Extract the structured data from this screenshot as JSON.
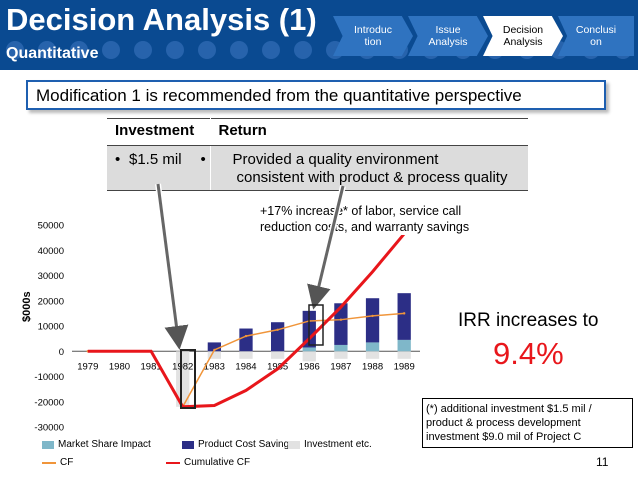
{
  "header": {
    "title": "Decision Analysis (1)",
    "subtitle": "Quantitative",
    "nav": [
      {
        "label_line1": "Introduc",
        "label_line2": "tion",
        "active": false
      },
      {
        "label_line1": "Issue",
        "label_line2": "Analysis",
        "active": false
      },
      {
        "label_line1": "Decision",
        "label_line2": "Analysis",
        "active": true
      },
      {
        "label_line1": "Conclusi",
        "label_line2": "on",
        "active": false
      }
    ]
  },
  "banner": {
    "text": "Modification 1 is recommended from the quantitative perspective"
  },
  "return_table": {
    "headers": [
      "Investment",
      "Return"
    ],
    "investment": "$1.5 mil",
    "return_line1": "Provided a quality environment",
    "return_line2": "consistent with product & process quality",
    "bullet": "•"
  },
  "annotation": {
    "line1": "+17% increase* of labor, service call",
    "line2": "reduction costs, and warranty savings"
  },
  "chart_data": {
    "type": "bar",
    "ylabel": "$000s",
    "ylim": [
      -30000,
      50000
    ],
    "y_ticks": [
      50000,
      40000,
      30000,
      20000,
      10000,
      0,
      -10000,
      -20000,
      -30000
    ],
    "categories": [
      "1979",
      "1980",
      "1981",
      "1982",
      "1983",
      "1984",
      "1985",
      "1986",
      "1987",
      "1988",
      "1989"
    ],
    "series": [
      {
        "name": "Market Share Impact",
        "kind": "bar",
        "color": "#7fb7c9",
        "values": [
          0,
          0,
          0,
          0,
          0,
          0,
          0,
          1500,
          2500,
          3500,
          4500
        ]
      },
      {
        "name": "Product Cost Savings",
        "kind": "bar",
        "color": "#2c2e86",
        "values": [
          0,
          0,
          0,
          0,
          3500,
          9000,
          11500,
          14500,
          16500,
          17500,
          18500
        ]
      },
      {
        "name": "Investment etc.",
        "kind": "bar",
        "color": "#e2e2e2",
        "values": [
          0,
          0,
          0,
          -22000,
          -3000,
          -3000,
          -3000,
          -4000,
          -3000,
          -3000,
          -3000
        ]
      },
      {
        "name": "CF",
        "kind": "line",
        "color": "#f0953a",
        "values": [
          0,
          0,
          0,
          -22000,
          500,
          6000,
          8500,
          12000,
          12500,
          14000,
          15000
        ]
      },
      {
        "name": "Cumulative CF",
        "kind": "line",
        "color": "#e8161b",
        "values": [
          0,
          0,
          0,
          -22000,
          -21500,
          -15500,
          -7000,
          5000,
          17500,
          31500,
          46500
        ]
      }
    ]
  },
  "irr": {
    "label": "IRR increases to",
    "value": "9.4%"
  },
  "note": {
    "line1": "(*) additional investment $1.5 mil /",
    "line2": "product & process development",
    "line3": "investment $9.0 mil of Project C"
  },
  "page_number": "11"
}
